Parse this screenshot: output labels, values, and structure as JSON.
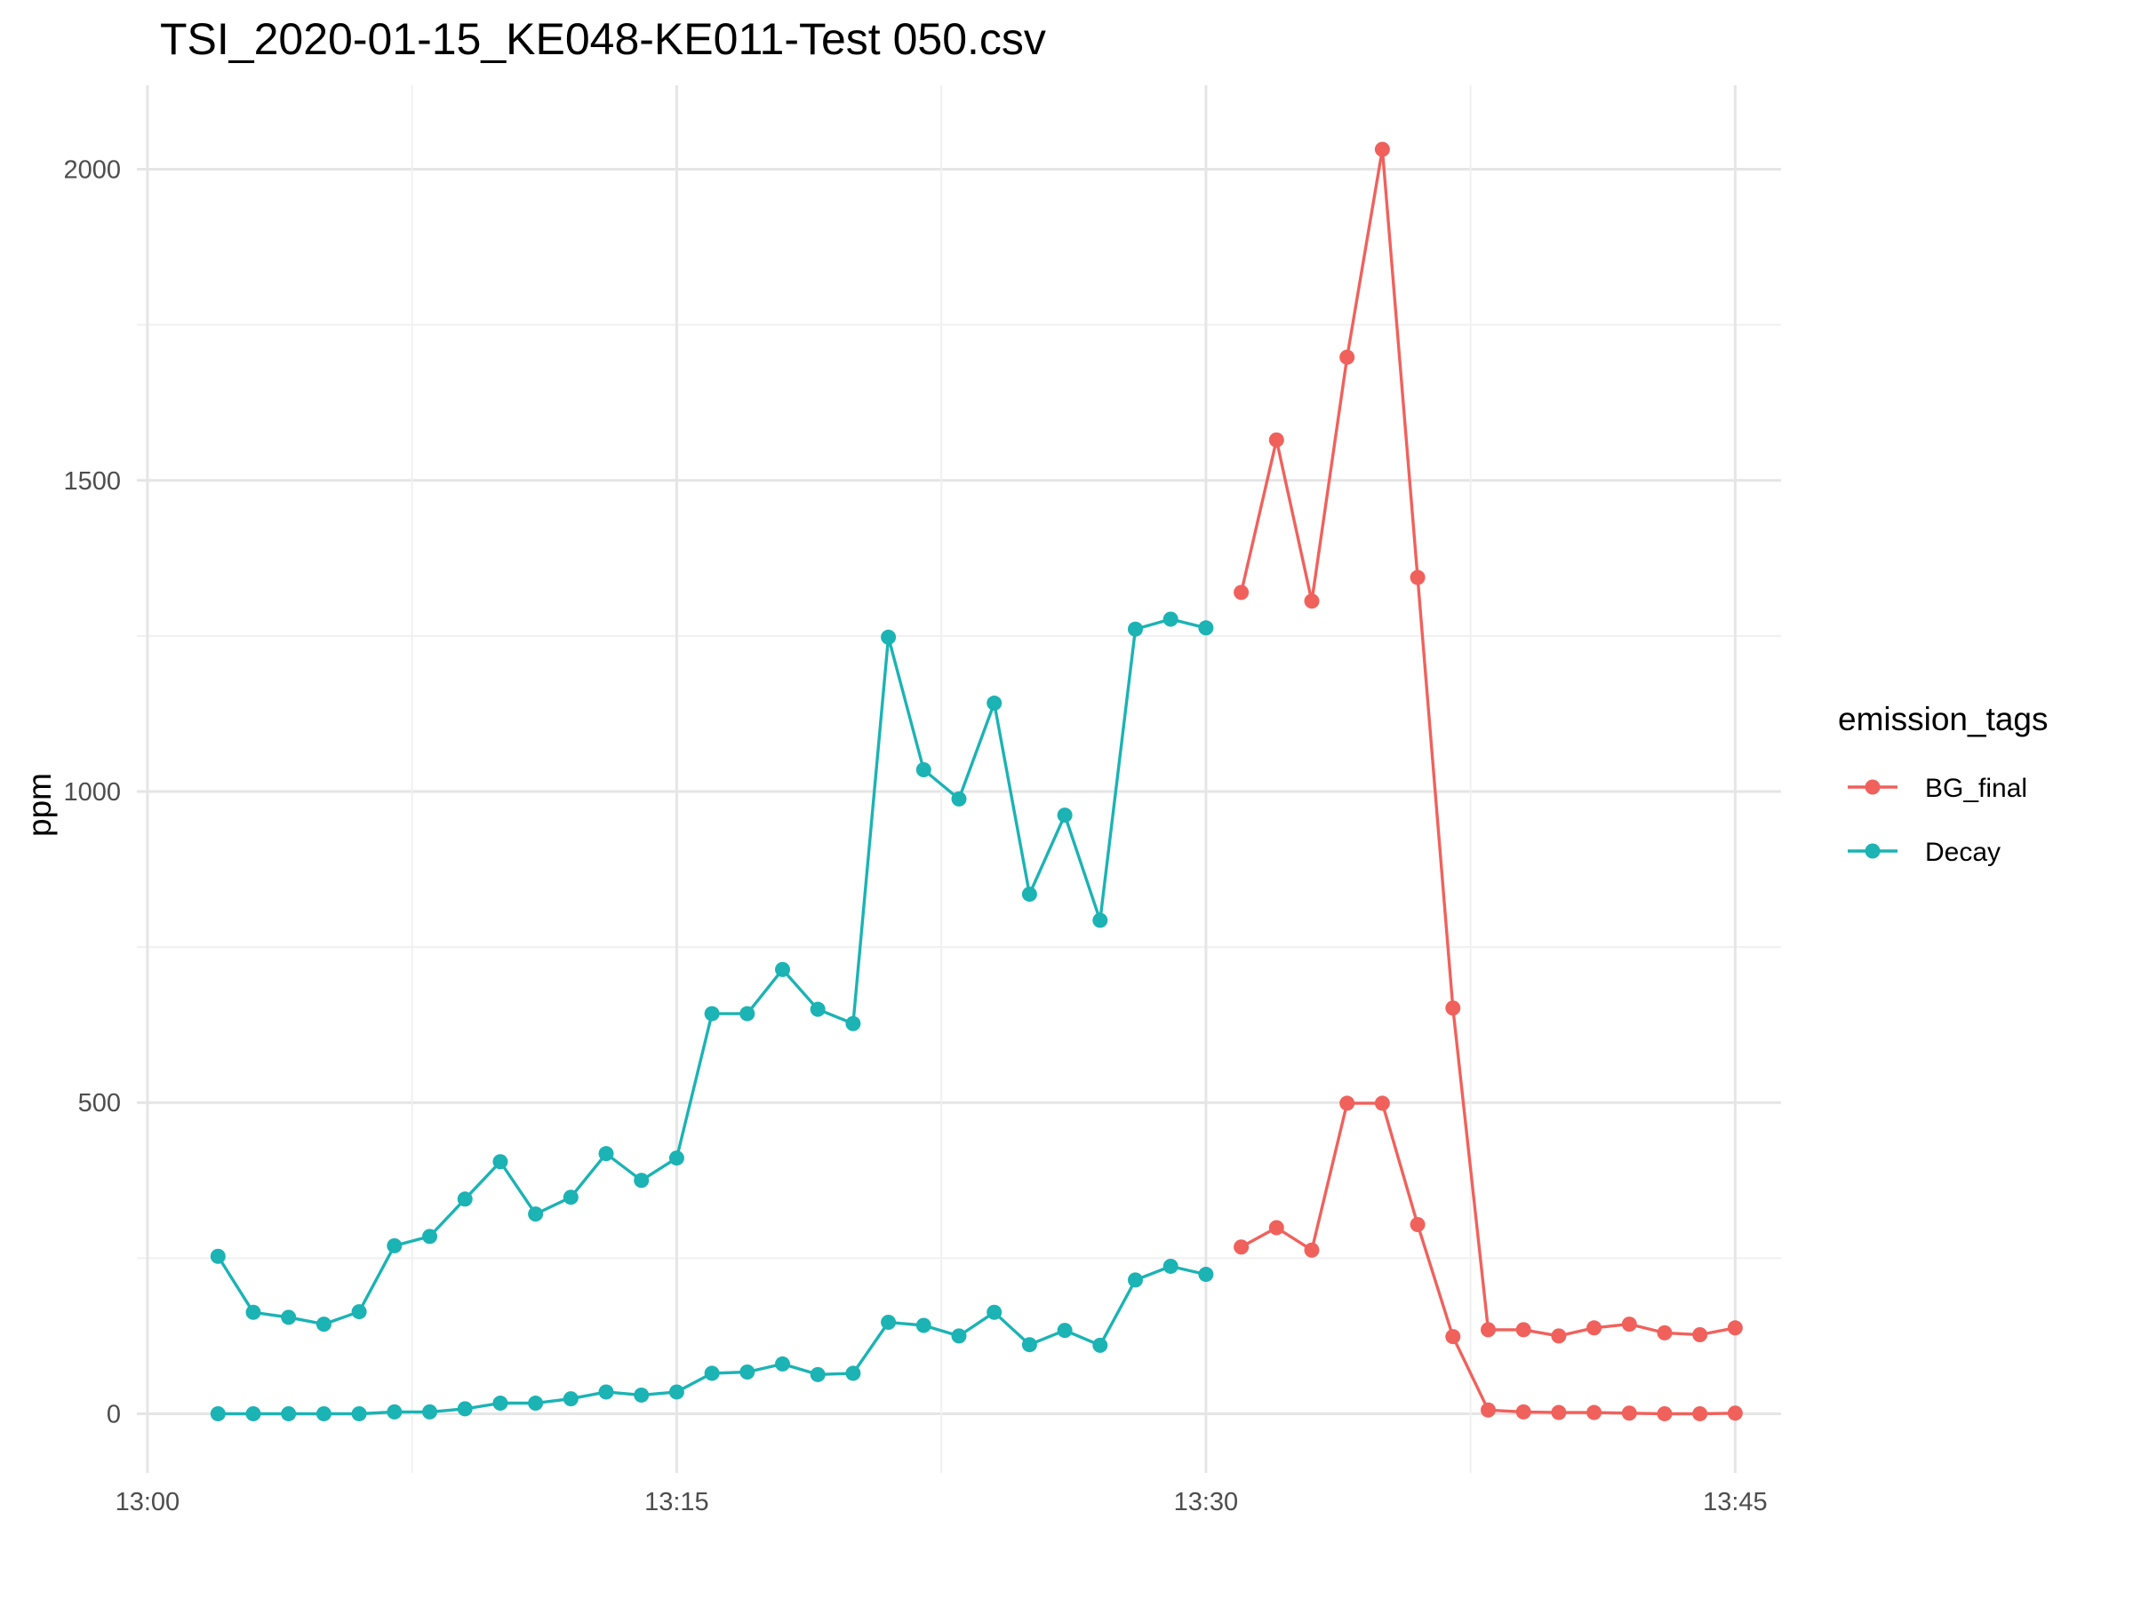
{
  "chart_data": {
    "type": "line",
    "title": "TSI_2020-01-15_KE048-KE011-Test 050.csv",
    "xlabel": "",
    "ylabel": "ppm",
    "x_tick_labels": [
      "13:00",
      "13:15",
      "13:30",
      "13:45"
    ],
    "y_tick_labels": [
      "0",
      "500",
      "1000",
      "1500",
      "2000"
    ],
    "xlim": [
      "12:59:42",
      "13:46:18"
    ],
    "ylim": [
      -95,
      2135
    ],
    "grid": true,
    "legend": {
      "title": "emission_tags",
      "position": "right",
      "entries": [
        "BG_final",
        "Decay"
      ]
    },
    "series": [
      {
        "name": "Decay",
        "color": "#1bb3b4",
        "lines": [
          {
            "x": [
              "13:02",
              "13:03",
              "13:04",
              "13:05",
              "13:06",
              "13:07",
              "13:08",
              "13:09",
              "13:10",
              "13:11",
              "13:12",
              "13:13",
              "13:14",
              "13:15",
              "13:16",
              "13:17",
              "13:18",
              "13:19",
              "13:20",
              "13:21",
              "13:22",
              "13:23",
              "13:24",
              "13:25",
              "13:26",
              "13:27",
              "13:28",
              "13:29",
              "13:30"
            ],
            "y": [
              253,
              163,
              155,
              144,
              164,
              270,
              285,
              345,
              405,
              321,
              348,
              418,
              375,
              411,
              643,
              643,
              714,
              650,
              627,
              1248,
              1035,
              988,
              1142,
              835,
              962,
              793,
              1261,
              1277,
              1263
            ]
          },
          {
            "x": [
              "13:02",
              "13:03",
              "13:04",
              "13:05",
              "13:06",
              "13:07",
              "13:08",
              "13:09",
              "13:10",
              "13:11",
              "13:12",
              "13:13",
              "13:14",
              "13:15",
              "13:16",
              "13:17",
              "13:18",
              "13:19",
              "13:20",
              "13:21",
              "13:22",
              "13:23",
              "13:24",
              "13:25",
              "13:26",
              "13:27",
              "13:28",
              "13:29",
              "13:30"
            ],
            "y": [
              0,
              0,
              0,
              0,
              0,
              3,
              3,
              8,
              17,
              17,
              24,
              35,
              30,
              35,
              65,
              67,
              80,
              63,
              65,
              147,
              142,
              125,
              163,
              111,
              134,
              110,
              215,
              237,
              224
            ]
          }
        ]
      },
      {
        "name": "BG_final",
        "color": "#f0615c",
        "lines": [
          {
            "x": [
              "13:31",
              "13:32",
              "13:33",
              "13:34",
              "13:35",
              "13:36",
              "13:37",
              "13:38",
              "13:39",
              "13:40",
              "13:41",
              "13:42",
              "13:43",
              "13:44",
              "13:45"
            ],
            "y": [
              1320,
              1565,
              1306,
              1698,
              2032,
              1344,
              652,
              135,
              135,
              125,
              138,
              144,
              130,
              127,
              138
            ]
          },
          {
            "x": [
              "13:31",
              "13:32",
              "13:33",
              "13:34",
              "13:35",
              "13:36",
              "13:37",
              "13:38",
              "13:39",
              "13:40",
              "13:41",
              "13:42",
              "13:43",
              "13:44",
              "13:45"
            ],
            "y": [
              268,
              299,
              263,
              499,
              499,
              304,
              124,
              6,
              3,
              2,
              2,
              1,
              0,
              0,
              1
            ]
          }
        ]
      }
    ]
  }
}
